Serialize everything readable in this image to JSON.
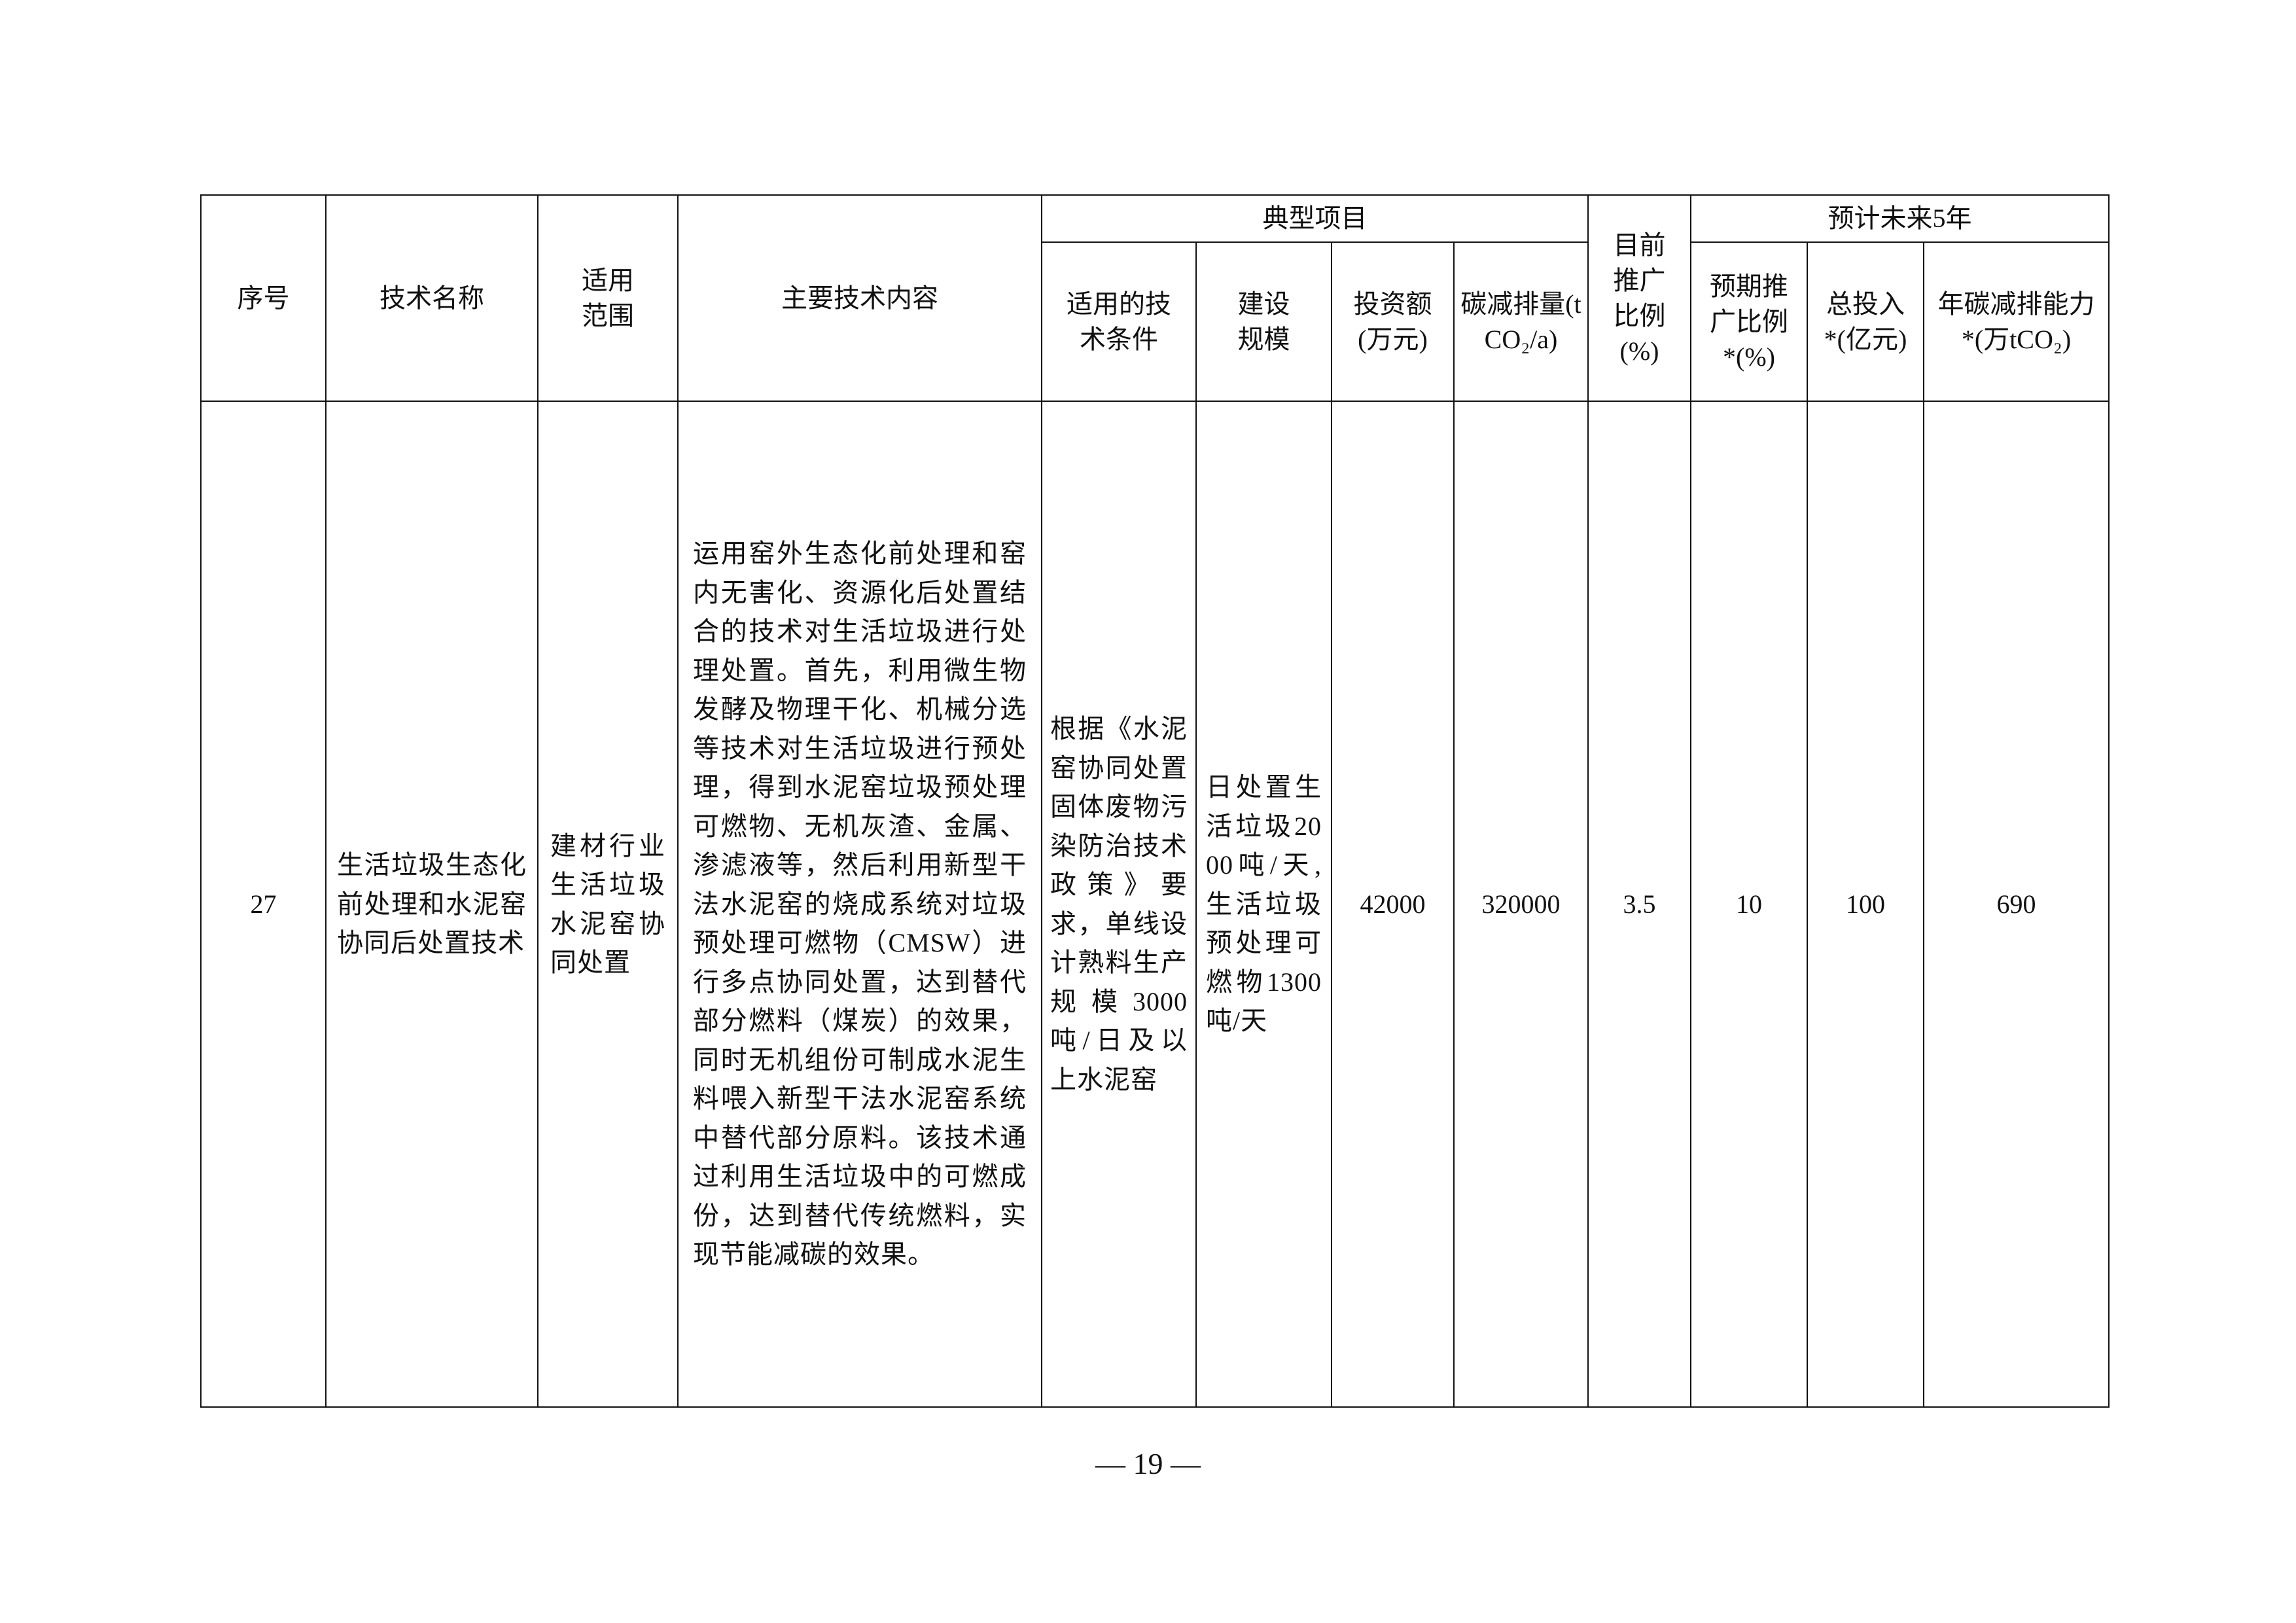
{
  "table": {
    "headers": {
      "index": "序号",
      "tech_name": "技术名称",
      "scope": "适用范围",
      "content": "主要技术内容",
      "typical_project": "典型项目",
      "tech_conditions": "适用的技术条件",
      "scale": "建设规模",
      "investment": "投资额(万元)",
      "carbon_reduction": "碳减排量(tCO₂/a)",
      "current_ratio": "目前推广比例(%)",
      "future5": "预计未来5年",
      "expected_ratio": "预期推广比例*(%)",
      "total_investment": "总投入*(亿元)",
      "annual_capacity": "年碳减排能力*(万tCO₂)"
    },
    "rows": [
      {
        "index": "27",
        "tech_name": "生活垃圾生态化前处理和水泥窑协同后处置技术",
        "scope": "建材行业生活垃圾水泥窑协同处置",
        "content": "运用窑外生态化前处理和窑内无害化、资源化后处置结合的技术对生活垃圾进行处理处置。首先，利用微生物发酵及物理干化、机械分选等技术对生活垃圾进行预处理，得到水泥窑垃圾预处理可燃物、无机灰渣、金属、渗滤液等，然后利用新型干法水泥窑的烧成系统对垃圾预处理可燃物（CMSW）进行多点协同处置，达到替代部分燃料（煤炭）的效果，同时无机组份可制成水泥生料喂入新型干法水泥窑系统中替代部分原料。该技术通过利用生活垃圾中的可燃成份，达到替代传统燃料，实现节能减碳的效果。",
        "tech_conditions": "根据《水泥窑协同处置固体废物污染防治技术政策》要求，单线设计熟料生产规模3000吨/日及以上水泥窑",
        "scale": "日处置生活垃圾2000吨/天,生活垃圾预处理可燃物1300吨/天",
        "investment": "42000",
        "carbon_reduction": "320000",
        "current_ratio": "3.5",
        "expected_ratio": "10",
        "total_investment": "100",
        "annual_capacity": "690"
      }
    ]
  },
  "page_number": "— 19 —"
}
